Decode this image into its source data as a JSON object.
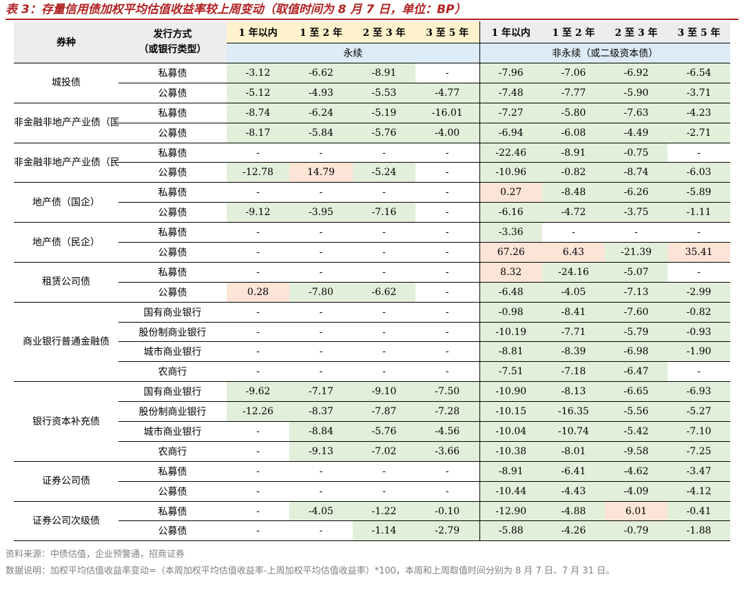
{
  "title": "表 3：存量信用债加权平均估值收益率较上周变动（取值时间为 8 月 7 日，单位：BP）",
  "header": {
    "bond_type": "券种",
    "issue_method_line1": "发行方式",
    "issue_method_line2": "（或银行类型）",
    "terms": [
      "1 年以内",
      "1 至 2 年",
      "2 至 3 年",
      "3 至 5 年",
      "1 年以内",
      "1 至 2 年",
      "2 至 3 年",
      "3 至 5 年"
    ],
    "perpetual": "永续",
    "non_perpetual": "非永续（或二级资本债）"
  },
  "groups": [
    {
      "name": "城投债",
      "rows": [
        {
          "sub": "私募债",
          "cells": [
            {
              "v": "-3.12",
              "c": "g"
            },
            {
              "v": "-6.62",
              "c": "g"
            },
            {
              "v": "-8.91",
              "c": "g"
            },
            {
              "v": "-",
              "c": ""
            },
            {
              "v": "-7.96",
              "c": "g"
            },
            {
              "v": "-7.06",
              "c": "g"
            },
            {
              "v": "-6.92",
              "c": "g"
            },
            {
              "v": "-6.54",
              "c": "g"
            }
          ]
        },
        {
          "sub": "公募债",
          "cells": [
            {
              "v": "-5.12",
              "c": "g"
            },
            {
              "v": "-4.93",
              "c": "g"
            },
            {
              "v": "-5.53",
              "c": "g"
            },
            {
              "v": "-4.77",
              "c": "g"
            },
            {
              "v": "-7.48",
              "c": "g"
            },
            {
              "v": "-7.77",
              "c": "g"
            },
            {
              "v": "-5.90",
              "c": "g"
            },
            {
              "v": "-3.71",
              "c": "g"
            }
          ]
        }
      ]
    },
    {
      "name": "非金融非地产产业债（国企）",
      "rows": [
        {
          "sub": "私募债",
          "cells": [
            {
              "v": "-8.74",
              "c": "g"
            },
            {
              "v": "-6.24",
              "c": "g"
            },
            {
              "v": "-5.19",
              "c": "g"
            },
            {
              "v": "-16.01",
              "c": "g"
            },
            {
              "v": "-7.27",
              "c": "g"
            },
            {
              "v": "-5.80",
              "c": "g"
            },
            {
              "v": "-7.63",
              "c": "g"
            },
            {
              "v": "-4.23",
              "c": "g"
            }
          ]
        },
        {
          "sub": "公募债",
          "cells": [
            {
              "v": "-8.17",
              "c": "g"
            },
            {
              "v": "-5.84",
              "c": "g"
            },
            {
              "v": "-5.76",
              "c": "g"
            },
            {
              "v": "-4.00",
              "c": "g"
            },
            {
              "v": "-6.94",
              "c": "g"
            },
            {
              "v": "-6.08",
              "c": "g"
            },
            {
              "v": "-4.49",
              "c": "g"
            },
            {
              "v": "-2.71",
              "c": "g"
            }
          ]
        }
      ]
    },
    {
      "name": "非金融非地产产业债（民企）",
      "rows": [
        {
          "sub": "私募债",
          "cells": [
            {
              "v": "-",
              "c": ""
            },
            {
              "v": "-",
              "c": ""
            },
            {
              "v": "-",
              "c": ""
            },
            {
              "v": "-",
              "c": ""
            },
            {
              "v": "-22.46",
              "c": "g"
            },
            {
              "v": "-8.91",
              "c": "g"
            },
            {
              "v": "-0.75",
              "c": "g"
            },
            {
              "v": "-",
              "c": ""
            }
          ]
        },
        {
          "sub": "公募债",
          "cells": [
            {
              "v": "-12.78",
              "c": "g"
            },
            {
              "v": "14.79",
              "c": "r"
            },
            {
              "v": "-5.24",
              "c": "g"
            },
            {
              "v": "-",
              "c": ""
            },
            {
              "v": "-10.96",
              "c": "g"
            },
            {
              "v": "-0.82",
              "c": "g"
            },
            {
              "v": "-8.74",
              "c": "g"
            },
            {
              "v": "-6.03",
              "c": "g"
            }
          ]
        }
      ]
    },
    {
      "name": "地产债（国企）",
      "rows": [
        {
          "sub": "私募债",
          "cells": [
            {
              "v": "-",
              "c": ""
            },
            {
              "v": "-",
              "c": ""
            },
            {
              "v": "-",
              "c": ""
            },
            {
              "v": "-",
              "c": ""
            },
            {
              "v": "0.27",
              "c": "r"
            },
            {
              "v": "-8.48",
              "c": "g"
            },
            {
              "v": "-6.26",
              "c": "g"
            },
            {
              "v": "-5.89",
              "c": "g"
            }
          ]
        },
        {
          "sub": "公募债",
          "cells": [
            {
              "v": "-9.12",
              "c": "g"
            },
            {
              "v": "-3.95",
              "c": "g"
            },
            {
              "v": "-7.16",
              "c": "g"
            },
            {
              "v": "-",
              "c": ""
            },
            {
              "v": "-6.16",
              "c": "g"
            },
            {
              "v": "-4.72",
              "c": "g"
            },
            {
              "v": "-3.75",
              "c": "g"
            },
            {
              "v": "-1.11",
              "c": "g"
            }
          ]
        }
      ]
    },
    {
      "name": "地产债（民企）",
      "rows": [
        {
          "sub": "私募债",
          "cells": [
            {
              "v": "-",
              "c": ""
            },
            {
              "v": "-",
              "c": ""
            },
            {
              "v": "-",
              "c": ""
            },
            {
              "v": "-",
              "c": ""
            },
            {
              "v": "-3.36",
              "c": "g"
            },
            {
              "v": "-",
              "c": ""
            },
            {
              "v": "-",
              "c": ""
            },
            {
              "v": "-",
              "c": ""
            }
          ]
        },
        {
          "sub": "公募债",
          "cells": [
            {
              "v": "-",
              "c": ""
            },
            {
              "v": "-",
              "c": ""
            },
            {
              "v": "-",
              "c": ""
            },
            {
              "v": "-",
              "c": ""
            },
            {
              "v": "67.26",
              "c": "r"
            },
            {
              "v": "6.43",
              "c": "r"
            },
            {
              "v": "-21.39",
              "c": "g"
            },
            {
              "v": "35.41",
              "c": "r"
            }
          ]
        }
      ]
    },
    {
      "name": "租赁公司债",
      "rows": [
        {
          "sub": "私募债",
          "cells": [
            {
              "v": "-",
              "c": ""
            },
            {
              "v": "-",
              "c": ""
            },
            {
              "v": "-",
              "c": ""
            },
            {
              "v": "-",
              "c": ""
            },
            {
              "v": "8.32",
              "c": "r"
            },
            {
              "v": "-24.16",
              "c": "g"
            },
            {
              "v": "-5.07",
              "c": "g"
            },
            {
              "v": "-",
              "c": ""
            }
          ]
        },
        {
          "sub": "公募债",
          "cells": [
            {
              "v": "0.28",
              "c": "r"
            },
            {
              "v": "-7.80",
              "c": "g"
            },
            {
              "v": "-6.62",
              "c": "g"
            },
            {
              "v": "-",
              "c": ""
            },
            {
              "v": "-6.48",
              "c": "g"
            },
            {
              "v": "-4.05",
              "c": "g"
            },
            {
              "v": "-7.13",
              "c": "g"
            },
            {
              "v": "-2.99",
              "c": "g"
            }
          ]
        }
      ]
    },
    {
      "name": "商业银行普通金融债",
      "rows": [
        {
          "sub": "国有商业银行",
          "cells": [
            {
              "v": "-",
              "c": ""
            },
            {
              "v": "-",
              "c": ""
            },
            {
              "v": "-",
              "c": ""
            },
            {
              "v": "-",
              "c": ""
            },
            {
              "v": "-0.98",
              "c": "g"
            },
            {
              "v": "-8.41",
              "c": "g"
            },
            {
              "v": "-7.60",
              "c": "g"
            },
            {
              "v": "-0.82",
              "c": "g"
            }
          ]
        },
        {
          "sub": "股份制商业银行",
          "cells": [
            {
              "v": "-",
              "c": ""
            },
            {
              "v": "-",
              "c": ""
            },
            {
              "v": "-",
              "c": ""
            },
            {
              "v": "-",
              "c": ""
            },
            {
              "v": "-10.19",
              "c": "g"
            },
            {
              "v": "-7.71",
              "c": "g"
            },
            {
              "v": "-5.79",
              "c": "g"
            },
            {
              "v": "-0.93",
              "c": "g"
            }
          ]
        },
        {
          "sub": "城市商业银行",
          "cells": [
            {
              "v": "-",
              "c": ""
            },
            {
              "v": "-",
              "c": ""
            },
            {
              "v": "-",
              "c": ""
            },
            {
              "v": "-",
              "c": ""
            },
            {
              "v": "-8.81",
              "c": "g"
            },
            {
              "v": "-8.39",
              "c": "g"
            },
            {
              "v": "-6.98",
              "c": "g"
            },
            {
              "v": "-1.90",
              "c": "g"
            }
          ]
        },
        {
          "sub": "农商行",
          "cells": [
            {
              "v": "-",
              "c": ""
            },
            {
              "v": "-",
              "c": ""
            },
            {
              "v": "-",
              "c": ""
            },
            {
              "v": "-",
              "c": ""
            },
            {
              "v": "-7.51",
              "c": "g"
            },
            {
              "v": "-7.18",
              "c": "g"
            },
            {
              "v": "-6.47",
              "c": "g"
            },
            {
              "v": "-",
              "c": ""
            }
          ]
        }
      ]
    },
    {
      "name": "银行资本补充债",
      "rows": [
        {
          "sub": "国有商业银行",
          "cells": [
            {
              "v": "-9.62",
              "c": "g"
            },
            {
              "v": "-7.17",
              "c": "g"
            },
            {
              "v": "-9.10",
              "c": "g"
            },
            {
              "v": "-7.50",
              "c": "g"
            },
            {
              "v": "-10.90",
              "c": "g"
            },
            {
              "v": "-8.13",
              "c": "g"
            },
            {
              "v": "-6.65",
              "c": "g"
            },
            {
              "v": "-6.93",
              "c": "g"
            }
          ]
        },
        {
          "sub": "股份制商业银行",
          "cells": [
            {
              "v": "-12.26",
              "c": "g"
            },
            {
              "v": "-8.37",
              "c": "g"
            },
            {
              "v": "-7.87",
              "c": "g"
            },
            {
              "v": "-7.28",
              "c": "g"
            },
            {
              "v": "-10.15",
              "c": "g"
            },
            {
              "v": "-16.35",
              "c": "g"
            },
            {
              "v": "-5.56",
              "c": "g"
            },
            {
              "v": "-5.27",
              "c": "g"
            }
          ]
        },
        {
          "sub": "城市商业银行",
          "cells": [
            {
              "v": "-",
              "c": ""
            },
            {
              "v": "-8.84",
              "c": "g"
            },
            {
              "v": "-5.76",
              "c": "g"
            },
            {
              "v": "-4.56",
              "c": "g"
            },
            {
              "v": "-10.04",
              "c": "g"
            },
            {
              "v": "-10.74",
              "c": "g"
            },
            {
              "v": "-5.42",
              "c": "g"
            },
            {
              "v": "-7.10",
              "c": "g"
            }
          ]
        },
        {
          "sub": "农商行",
          "cells": [
            {
              "v": "-",
              "c": ""
            },
            {
              "v": "-9.13",
              "c": "g"
            },
            {
              "v": "-7.02",
              "c": "g"
            },
            {
              "v": "-3.66",
              "c": "g"
            },
            {
              "v": "-10.38",
              "c": "g"
            },
            {
              "v": "-8.01",
              "c": "g"
            },
            {
              "v": "-9.58",
              "c": "g"
            },
            {
              "v": "-7.25",
              "c": "g"
            }
          ]
        }
      ]
    },
    {
      "name": "证券公司债",
      "rows": [
        {
          "sub": "私募债",
          "cells": [
            {
              "v": "-",
              "c": ""
            },
            {
              "v": "-",
              "c": ""
            },
            {
              "v": "-",
              "c": ""
            },
            {
              "v": "-",
              "c": ""
            },
            {
              "v": "-8.91",
              "c": "g"
            },
            {
              "v": "-6.41",
              "c": "g"
            },
            {
              "v": "-4.62",
              "c": "g"
            },
            {
              "v": "-3.47",
              "c": "g"
            }
          ]
        },
        {
          "sub": "公募债",
          "cells": [
            {
              "v": "-",
              "c": ""
            },
            {
              "v": "-",
              "c": ""
            },
            {
              "v": "-",
              "c": ""
            },
            {
              "v": "-",
              "c": ""
            },
            {
              "v": "-10.44",
              "c": "g"
            },
            {
              "v": "-4.43",
              "c": "g"
            },
            {
              "v": "-4.09",
              "c": "g"
            },
            {
              "v": "-4.12",
              "c": "g"
            }
          ]
        }
      ]
    },
    {
      "name": "证券公司次级债",
      "rows": [
        {
          "sub": "私募债",
          "cells": [
            {
              "v": "-",
              "c": ""
            },
            {
              "v": "-4.05",
              "c": "g"
            },
            {
              "v": "-1.22",
              "c": "g"
            },
            {
              "v": "-0.10",
              "c": "g"
            },
            {
              "v": "-12.90",
              "c": "g"
            },
            {
              "v": "-4.88",
              "c": "g"
            },
            {
              "v": "6.01",
              "c": "r"
            },
            {
              "v": "-0.41",
              "c": "g"
            }
          ]
        },
        {
          "sub": "公募债",
          "cells": [
            {
              "v": "-",
              "c": ""
            },
            {
              "v": "-",
              "c": ""
            },
            {
              "v": "-1.14",
              "c": "g"
            },
            {
              "v": "-2.79",
              "c": "g"
            },
            {
              "v": "-5.88",
              "c": "g"
            },
            {
              "v": "-4.26",
              "c": "g"
            },
            {
              "v": "-0.79",
              "c": "g"
            },
            {
              "v": "-1.88",
              "c": "g"
            }
          ]
        }
      ]
    }
  ],
  "colors": {
    "title": "#B22222",
    "negative_fill": "#E2EFDA",
    "positive_fill": "#FCE4D6",
    "header_gray": "#EDEDED",
    "header_yellow": "#FFF2CC",
    "header_blue": "#DDEBF7"
  },
  "footer": {
    "source": "资料来源：中债估值，企业预警通，招商证券",
    "note": "数据说明：加权平均估值收益率变动=（本周加权平均估值收益率-上周加权平均估值收益率）*100，本周和上周取值时间分别为 8 月 7 日、7 月 31 日。"
  }
}
